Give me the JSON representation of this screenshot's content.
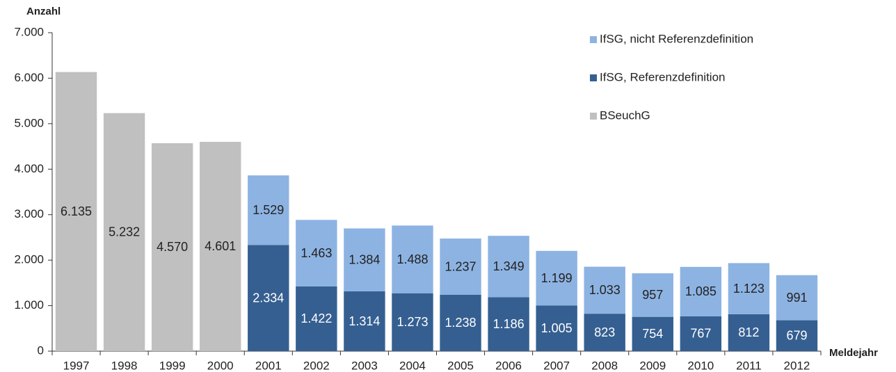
{
  "chart_data": {
    "type": "stacked_bar",
    "y_label": "Anzahl",
    "x_label": "Meldejahr",
    "categories": [
      "1997",
      "1998",
      "1999",
      "2000",
      "2001",
      "2002",
      "2003",
      "2004",
      "2005",
      "2006",
      "2007",
      "2008",
      "2009",
      "2010",
      "2011",
      "2012"
    ],
    "series": [
      {
        "name": "BSeuchG",
        "color": "#c0c0c0",
        "label_color": "#222222",
        "values": [
          6135,
          5232,
          4570,
          4601,
          null,
          null,
          null,
          null,
          null,
          null,
          null,
          null,
          null,
          null,
          null,
          null
        ],
        "value_labels": [
          "6.135",
          "5.232",
          "4.570",
          "4.601",
          null,
          null,
          null,
          null,
          null,
          null,
          null,
          null,
          null,
          null,
          null,
          null
        ]
      },
      {
        "name": "IfSG, Referenzdefinition",
        "color": "#355f91",
        "label_color": "#ffffff",
        "values": [
          null,
          null,
          null,
          null,
          2334,
          1422,
          1314,
          1273,
          1238,
          1186,
          1005,
          823,
          754,
          767,
          812,
          679
        ],
        "value_labels": [
          null,
          null,
          null,
          null,
          "2.334",
          "1.422",
          "1.314",
          "1.273",
          "1.238",
          "1.186",
          "1.005",
          "823",
          "754",
          "767",
          "812",
          "679"
        ]
      },
      {
        "name": "IfSG, nicht Referenzdefinition",
        "color": "#8db3e2",
        "label_color": "#222222",
        "values": [
          null,
          null,
          null,
          null,
          1529,
          1463,
          1384,
          1488,
          1237,
          1349,
          1199,
          1033,
          957,
          1085,
          1123,
          991
        ],
        "value_labels": [
          null,
          null,
          null,
          null,
          "1.529",
          "1.463",
          "1.384",
          "1.488",
          "1.237",
          "1.349",
          "1.199",
          "1.033",
          "957",
          "1.085",
          "1.123",
          "991"
        ]
      }
    ],
    "ylim": [
      0,
      7000
    ],
    "yticks": [
      0,
      {
        "value": 1000,
        "label": "1.000"
      },
      {
        "value": 2000,
        "label": "2.000"
      },
      {
        "value": 3000,
        "label": "3.000"
      },
      {
        "value": 4000,
        "label": "4.000"
      },
      {
        "value": 5000,
        "label": "5.000"
      },
      {
        "value": 6000,
        "label": "6.000"
      },
      {
        "value": 7000,
        "label": "7.000"
      }
    ],
    "legend": "top-right"
  }
}
